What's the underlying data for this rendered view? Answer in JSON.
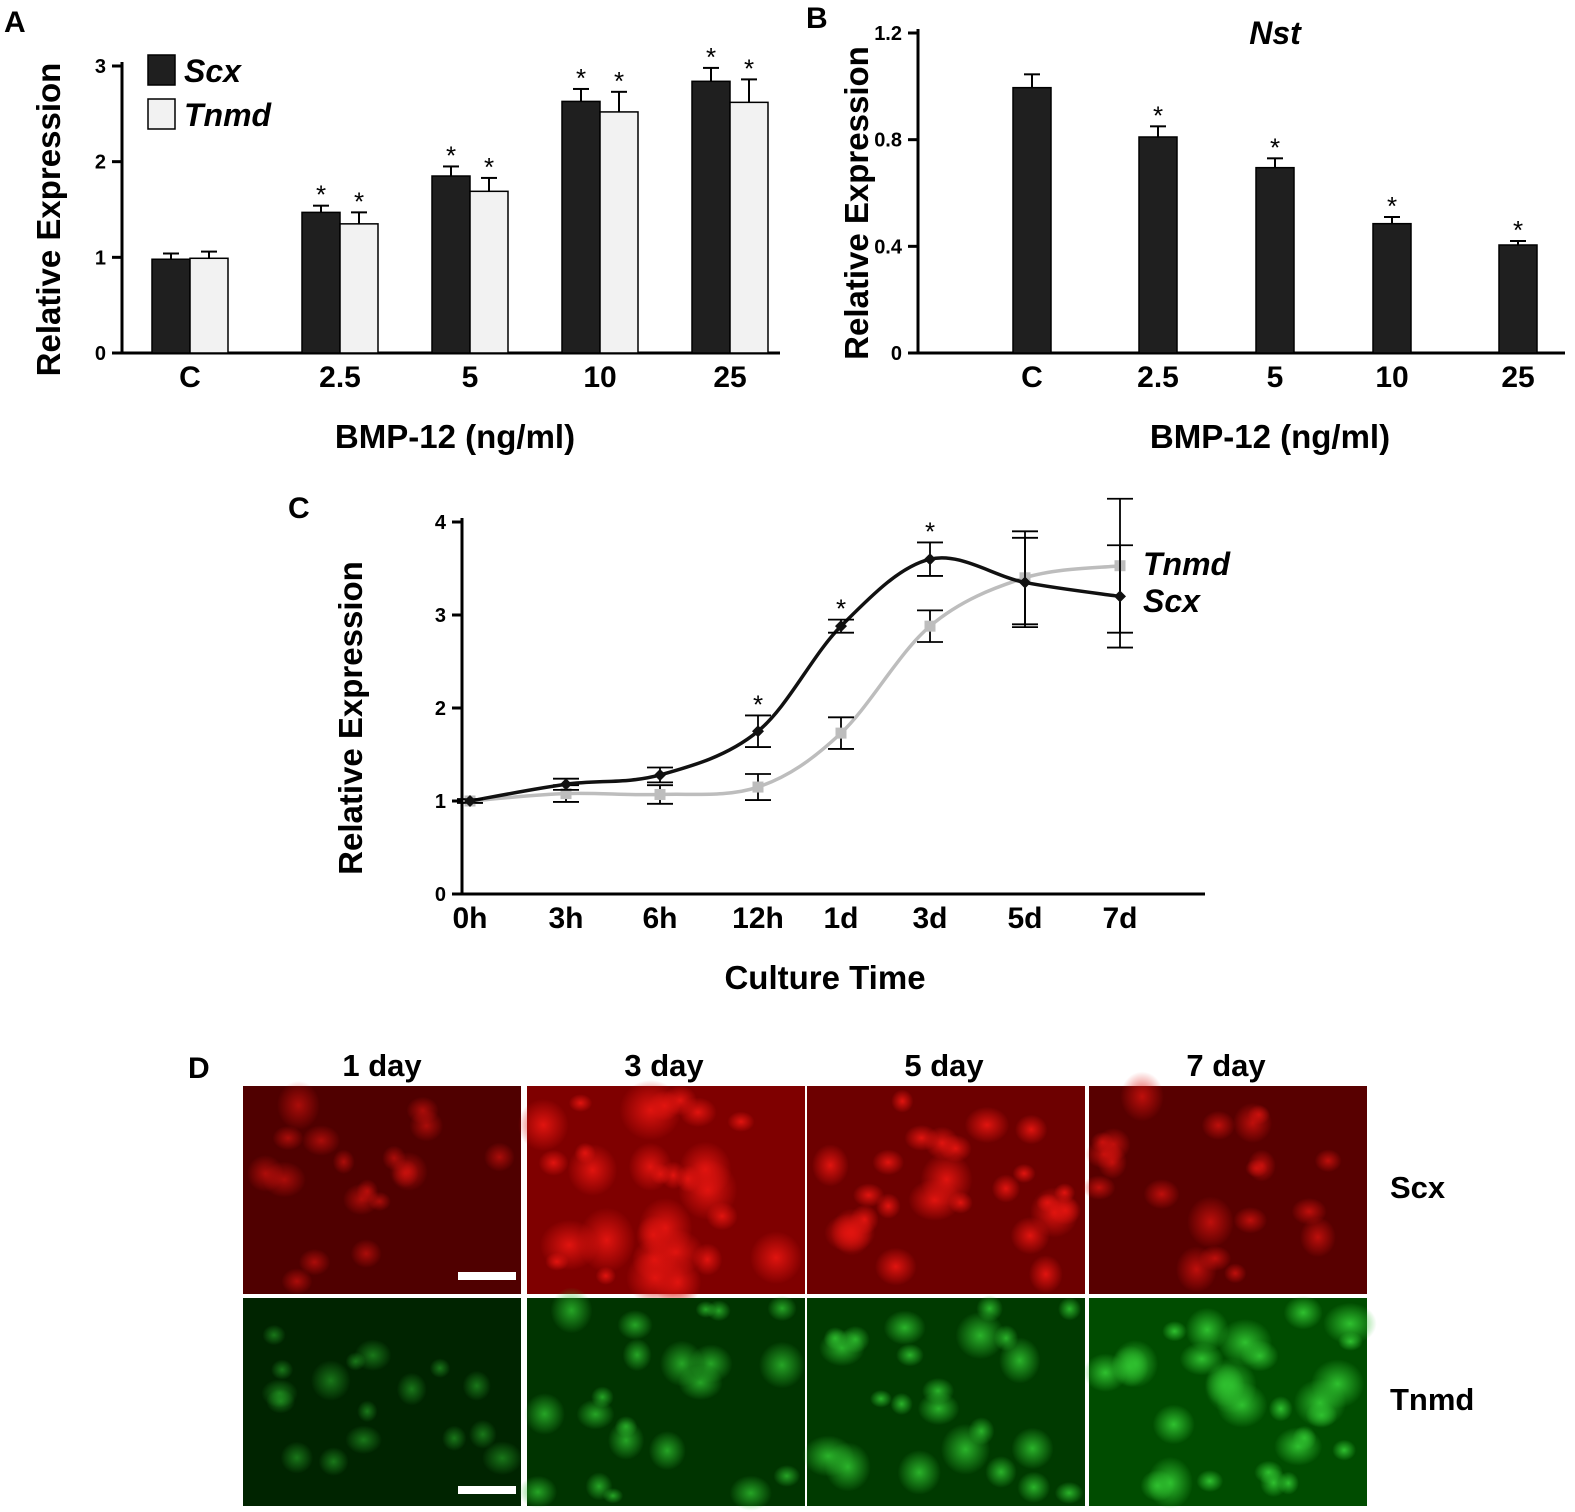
{
  "chart_data": [
    {
      "panel": "A",
      "type": "bar",
      "categories": [
        "C",
        "2.5",
        "5",
        "10",
        "25"
      ],
      "xlabel": "BMP-12 (ng/ml)",
      "ylabel": "Relative Expression",
      "ylim": [
        0,
        3
      ],
      "yticks": [
        "0",
        "1",
        "2",
        "3"
      ],
      "legend": "top-left",
      "series": [
        {
          "name": "Scx",
          "color": "#1f1f1f",
          "values": [
            0.98,
            1.47,
            1.85,
            2.63,
            2.84
          ],
          "errors": [
            0.06,
            0.07,
            0.1,
            0.13,
            0.14
          ],
          "significant": [
            false,
            true,
            true,
            true,
            true
          ]
        },
        {
          "name": "Tnmd",
          "color": "#f2f2f2",
          "values": [
            0.99,
            1.35,
            1.69,
            2.52,
            2.62
          ],
          "errors": [
            0.07,
            0.12,
            0.14,
            0.21,
            0.24
          ],
          "significant": [
            false,
            true,
            true,
            true,
            true
          ]
        }
      ],
      "significance_mark": "*"
    },
    {
      "panel": "B",
      "type": "bar",
      "title": "Nst",
      "categories": [
        "C",
        "2.5",
        "5",
        "10",
        "25"
      ],
      "xlabel": "BMP-12 (ng/ml)",
      "ylabel": "Relative Expression",
      "ylim": [
        0,
        1.2
      ],
      "yticks": [
        "0",
        "0.4",
        "0.8",
        "1.2"
      ],
      "series": [
        {
          "color": "#1f1f1f",
          "values": [
            0.995,
            0.81,
            0.695,
            0.485,
            0.405
          ],
          "errors": [
            0.05,
            0.04,
            0.035,
            0.025,
            0.015
          ],
          "significant": [
            false,
            true,
            true,
            true,
            true
          ]
        }
      ],
      "significance_mark": "*"
    },
    {
      "panel": "C",
      "type": "line",
      "categories": [
        "0h",
        "3h",
        "6h",
        "12h",
        "1d",
        "3d",
        "5d",
        "7d"
      ],
      "xlabel": "Culture Time",
      "ylabel": "Relative Expression",
      "ylim": [
        0,
        4
      ],
      "yticks": [
        "0",
        "1",
        "2",
        "3",
        "4"
      ],
      "series": [
        {
          "name": "Scx",
          "color": "#111111",
          "values": [
            1.0,
            1.18,
            1.28,
            1.75,
            2.88,
            3.6,
            3.35,
            3.2
          ],
          "errors": [
            0.02,
            0.06,
            0.08,
            0.17,
            0.07,
            0.18,
            0.48,
            0.55
          ],
          "significant": [
            false,
            false,
            false,
            true,
            true,
            true,
            false,
            false
          ]
        },
        {
          "name": "Tnmd",
          "color": "#bdbdbd",
          "values": [
            1.0,
            1.08,
            1.07,
            1.15,
            1.73,
            2.88,
            3.4,
            3.53
          ],
          "errors": [
            0.02,
            0.09,
            0.1,
            0.14,
            0.17,
            0.17,
            0.5,
            0.72
          ]
        }
      ],
      "significance_mark": "*"
    }
  ],
  "panels": {
    "a": {
      "letter": "A"
    },
    "b": {
      "letter": "B"
    },
    "c": {
      "letter": "C"
    },
    "d": {
      "letter": "D",
      "columns": [
        "1 day",
        "3 day",
        "5 day",
        "7 day"
      ],
      "rows": [
        {
          "label": "Scx",
          "color": "#e0140f",
          "intensity": [
            0.28,
            0.95,
            0.7,
            0.4
          ]
        },
        {
          "label": "Tnmd",
          "color": "#2fc02f",
          "intensity": [
            0.18,
            0.45,
            0.55,
            0.85
          ]
        }
      ]
    }
  }
}
